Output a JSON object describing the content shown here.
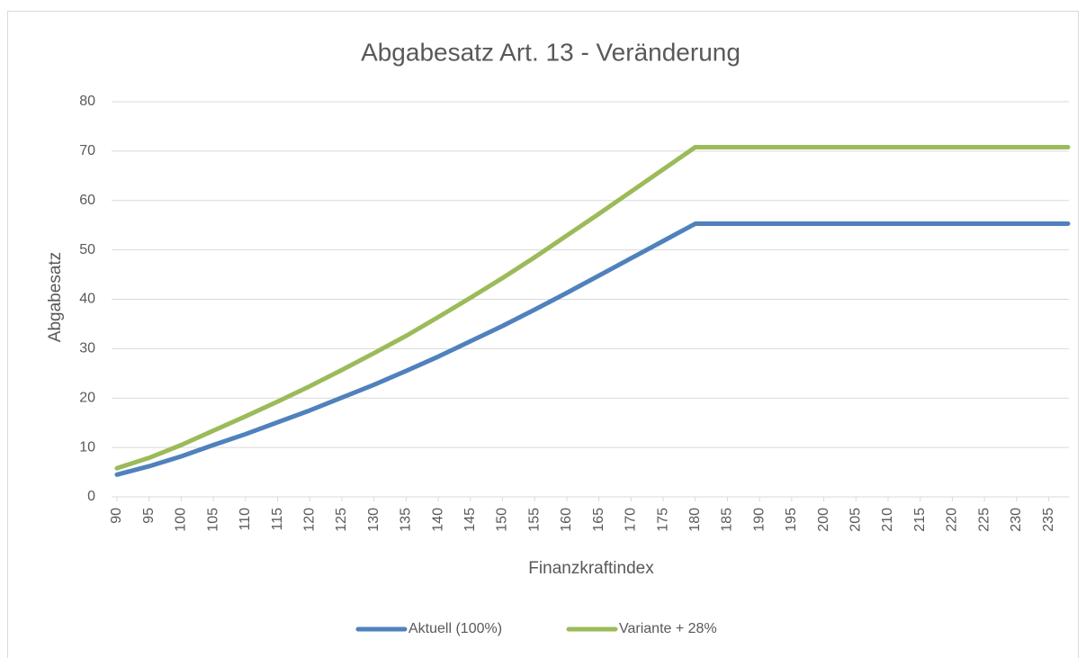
{
  "chart_data": {
    "type": "line",
    "title": "Abgabesatz Art. 13 - Veränderung",
    "x_label": "Finanzkraftindex",
    "y_label": "Abgabesatz",
    "x": [
      90,
      95,
      100,
      105,
      110,
      115,
      120,
      125,
      130,
      135,
      140,
      145,
      150,
      155,
      160,
      165,
      170,
      175,
      180,
      238
    ],
    "series": [
      {
        "name": "Aktuell (100%)",
        "color": "#4f81bd",
        "values": [
          4.5,
          6.2,
          8.2,
          10.5,
          12.7,
          15.1,
          17.5,
          20.1,
          22.7,
          25.5,
          28.4,
          31.5,
          34.6,
          37.9,
          41.3,
          44.8,
          48.3,
          51.8,
          55.3,
          55.3
        ]
      },
      {
        "name": "Variante + 28%",
        "color": "#9bbb59",
        "values": [
          5.8,
          7.9,
          10.5,
          13.4,
          16.3,
          19.3,
          22.4,
          25.7,
          29.1,
          32.6,
          36.4,
          40.3,
          44.3,
          48.5,
          52.9,
          57.3,
          61.8,
          66.3,
          70.8,
          70.8
        ]
      }
    ],
    "xlim": [
      90,
      238
    ],
    "xticks": [
      90,
      95,
      100,
      105,
      110,
      115,
      120,
      125,
      130,
      135,
      140,
      145,
      150,
      155,
      160,
      165,
      170,
      175,
      180,
      185,
      190,
      195,
      200,
      205,
      210,
      215,
      220,
      225,
      230,
      235
    ],
    "ylim": [
      0,
      80
    ],
    "yticks": [
      0,
      10,
      20,
      30,
      40,
      50,
      60,
      70,
      80
    ],
    "grid": true,
    "legend": "bottom"
  }
}
